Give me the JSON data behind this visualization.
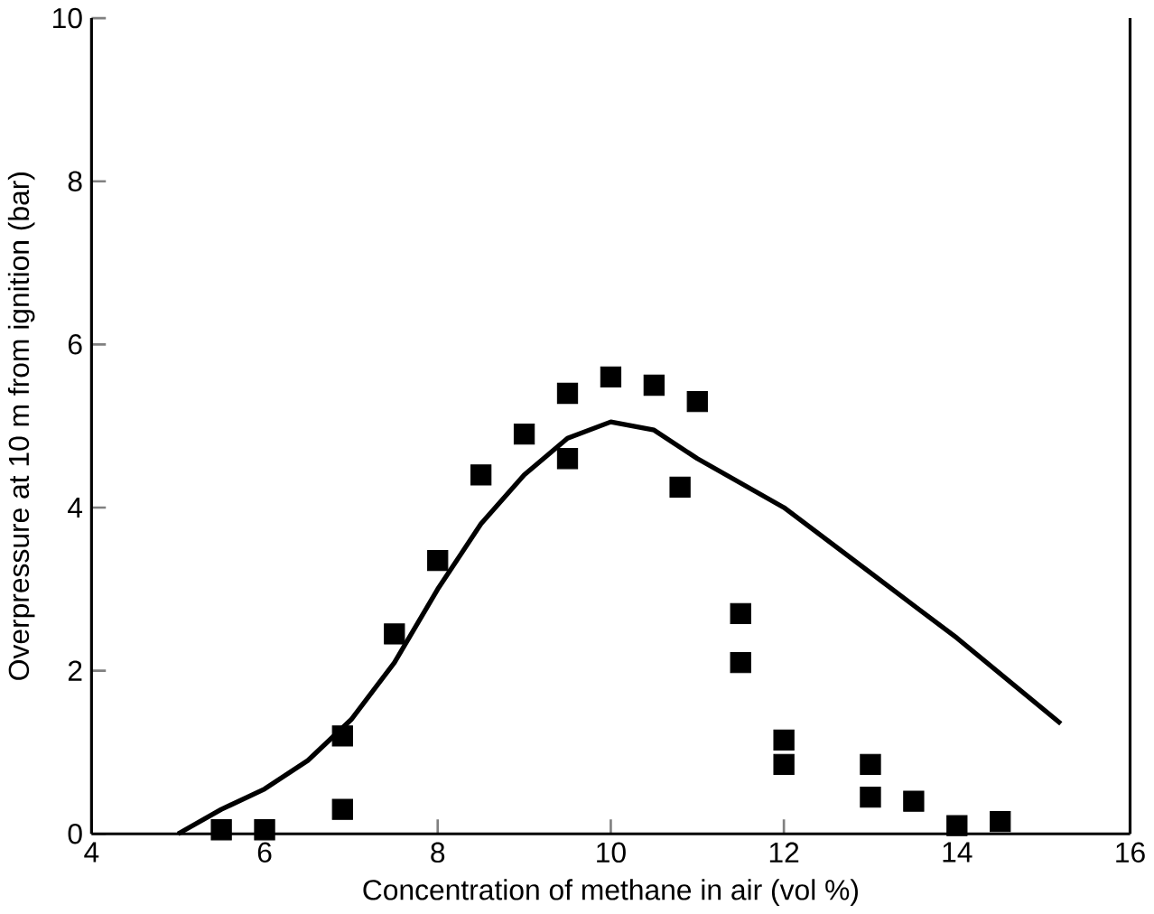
{
  "chart_data": {
    "type": "scatter",
    "xlabel": "Concentration of methane in air (vol %)",
    "ylabel": "Overpressure at 10 m from ignition (bar)",
    "xlim": [
      4,
      16
    ],
    "ylim": [
      0,
      10
    ],
    "xticks": [
      4,
      6,
      8,
      10,
      12,
      14,
      16
    ],
    "yticks": [
      0,
      2,
      4,
      6,
      8,
      10
    ],
    "series": [
      {
        "marker": "square",
        "color": "#000000",
        "x": [
          5.5,
          6,
          6.9,
          6.9,
          7.5,
          8,
          8.5,
          9,
          9.5,
          9.5,
          10,
          10.5,
          11,
          10.8,
          11.5,
          11.5,
          12,
          12,
          13,
          13,
          13.5,
          14,
          14.5
        ],
        "values": [
          0.05,
          0.05,
          1.2,
          0.3,
          2.45,
          3.35,
          4.4,
          4.9,
          5.4,
          4.6,
          5.6,
          5.5,
          5.3,
          4.25,
          2.7,
          2.1,
          1.15,
          0.85,
          0.85,
          0.45,
          0.4,
          0.1,
          0.15
        ]
      },
      {
        "type": "line",
        "marker": "none",
        "line_style": "solid",
        "color": "#000000",
        "x": [
          5,
          5.5,
          6,
          6.5,
          7,
          7.5,
          8,
          8.5,
          9,
          9.5,
          10,
          10.5,
          11,
          12,
          13,
          14,
          15.2
        ],
        "values": [
          0,
          0.3,
          0.55,
          0.9,
          1.4,
          2.1,
          3.0,
          3.8,
          4.4,
          4.85,
          5.05,
          4.95,
          4.6,
          4.0,
          3.2,
          2.4,
          1.35
        ]
      }
    ]
  }
}
